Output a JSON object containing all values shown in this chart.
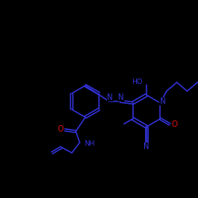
{
  "background_color": "#000000",
  "bond_color": "#3333dd",
  "atom_colors": {
    "N": "#3333dd",
    "O": "#dd1111",
    "C": "#3333dd"
  },
  "lw": 1.1,
  "fontsize": 7.0
}
